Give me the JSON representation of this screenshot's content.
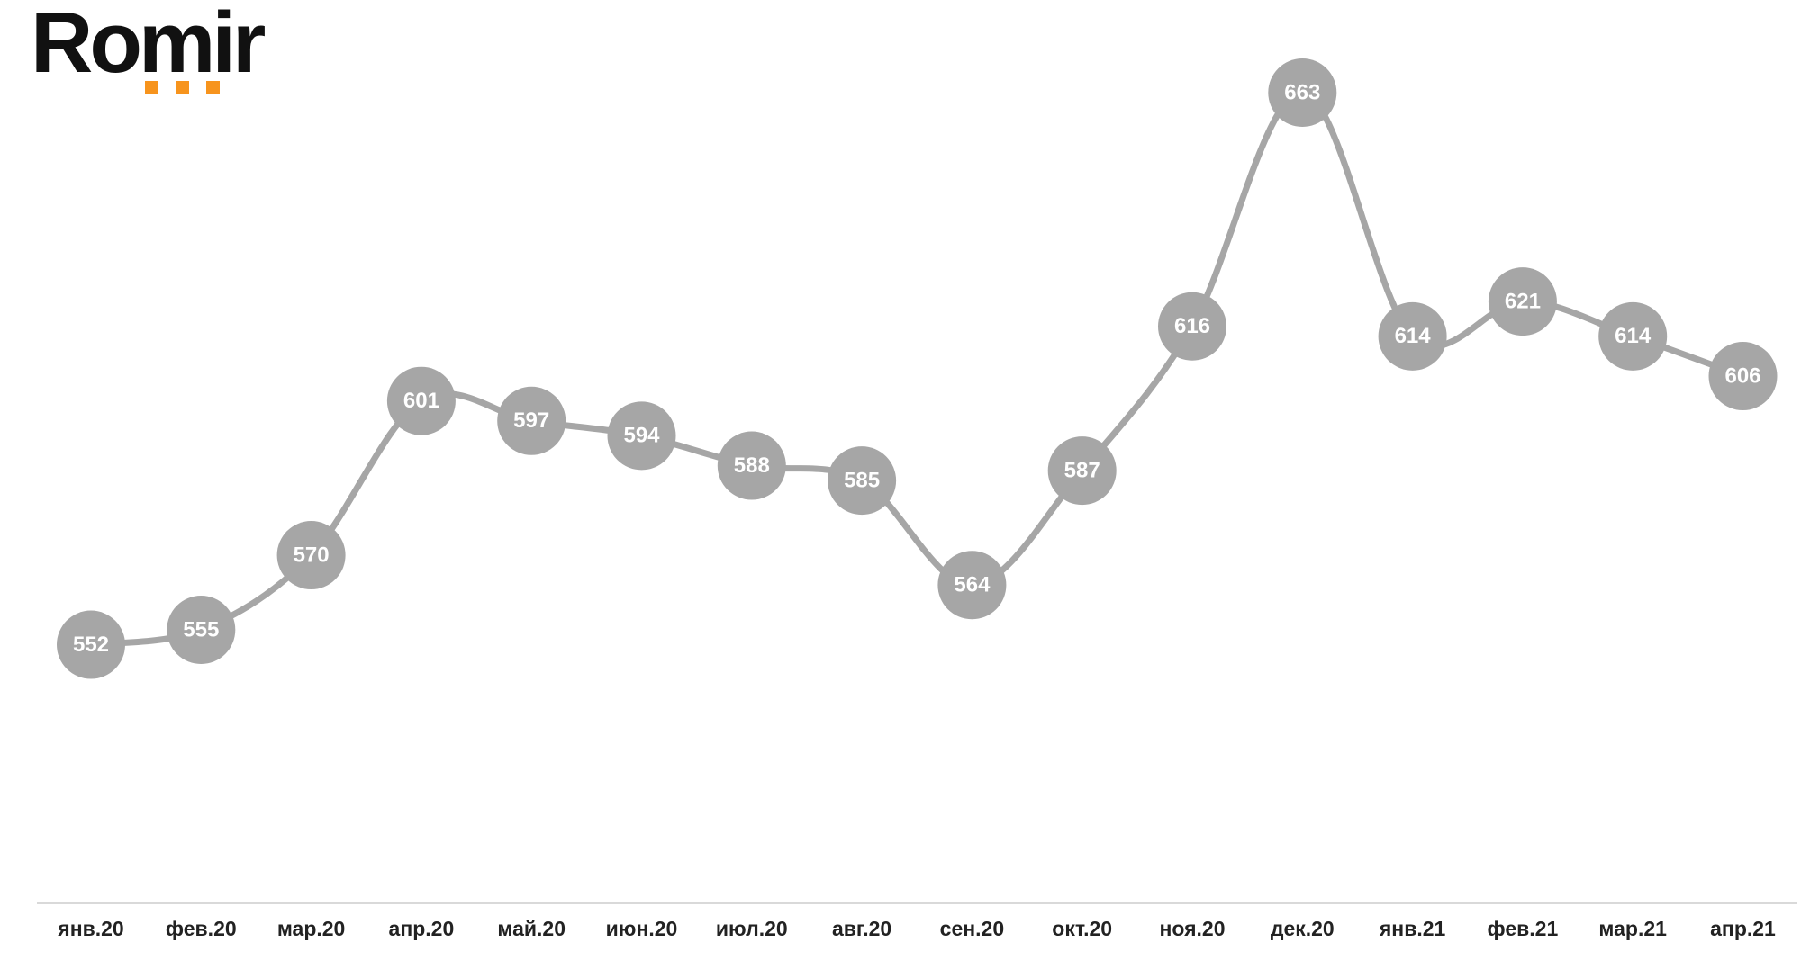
{
  "logo": "Romir",
  "chart_data": {
    "type": "line",
    "categories": [
      "янв.20",
      "фев.20",
      "мар.20",
      "апр.20",
      "май.20",
      "июн.20",
      "июл.20",
      "авг.20",
      "сен.20",
      "окт.20",
      "ноя.20",
      "дек.20",
      "янв.21",
      "фев.21",
      "мар.21",
      "апр.21"
    ],
    "values": [
      552,
      555,
      570,
      601,
      597,
      594,
      588,
      585,
      564,
      587,
      616,
      663,
      614,
      621,
      614,
      606
    ],
    "color": "#a6a6a6",
    "ylim": [
      500,
      680
    ],
    "smooth": true,
    "markers": true,
    "data_labels": true
  }
}
